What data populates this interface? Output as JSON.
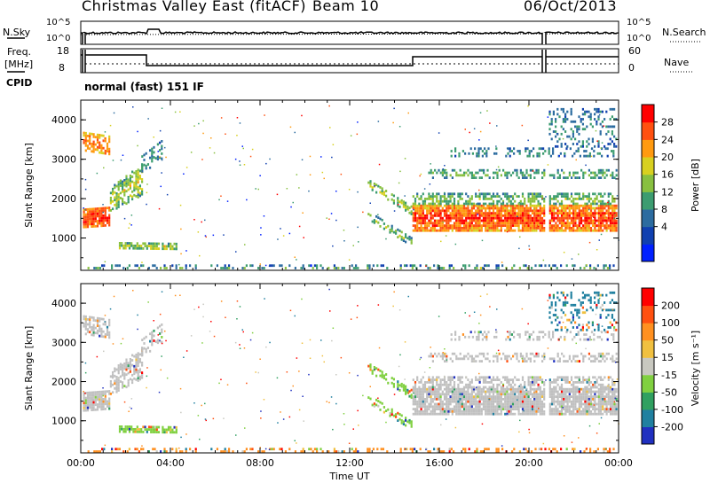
{
  "header": {
    "title": "Christmas Valley East (fitACF)",
    "beam": "Beam 10",
    "date": "06/Oct/2013"
  },
  "panels": {
    "noise": {
      "left_label": "N.Sky",
      "left_ticks": [
        "10^5",
        "10^0"
      ],
      "right_ticks": [
        "10^5",
        "10^0"
      ],
      "right_label": "N.Search"
    },
    "freq": {
      "left_label_1": "Freq.",
      "left_label_2": "[MHz]",
      "left_ticks": [
        "18",
        "8"
      ],
      "right_ticks": [
        "60",
        "0"
      ],
      "right_label": "Nave"
    },
    "cpid": {
      "label": "CPID",
      "text": "normal (fast) 151 IF"
    }
  },
  "chart_data": [
    {
      "type": "heatmap",
      "name": "power",
      "ylabel": "Slant Range [km]",
      "yticks": [
        1000,
        2000,
        3000,
        4000
      ],
      "ylim": [
        180,
        4500
      ],
      "xlim_hours": [
        0,
        24
      ],
      "colorbar": {
        "label": "Power [dB]",
        "ticks": [
          "28",
          "24",
          "20",
          "16",
          "12",
          "8",
          "4"
        ],
        "range": [
          0,
          30
        ],
        "colors": [
          "#0020ff",
          "#1040b0",
          "#2c6ca0",
          "#3c9c70",
          "#88c040",
          "#d8d020",
          "#ff9a10",
          "#ff5010",
          "#ff0000"
        ]
      }
    },
    {
      "type": "heatmap",
      "name": "velocity",
      "ylabel": "Slant Range [km]",
      "yticks": [
        1000,
        2000,
        3000,
        4000
      ],
      "ylim": [
        180,
        4500
      ],
      "xlim_hours": [
        0,
        24
      ],
      "xlabel": "Time UT",
      "xticks": [
        "00:00",
        "04:00",
        "08:00",
        "12:00",
        "16:00",
        "20:00",
        "00:00"
      ],
      "colorbar": {
        "label": "Velocity [m s^-1]",
        "ticks": [
          "200",
          "100",
          "50",
          "15",
          "-15",
          "-50",
          "-100",
          "-200"
        ],
        "colors": [
          "#2030c0",
          "#2080a0",
          "#30a060",
          "#80d040",
          "#c8c8c0",
          "#f0c040",
          "#ff9020",
          "#ff5010",
          "#ff0000"
        ]
      },
      "ground_scatter_color": "#c0c0c0"
    }
  ]
}
